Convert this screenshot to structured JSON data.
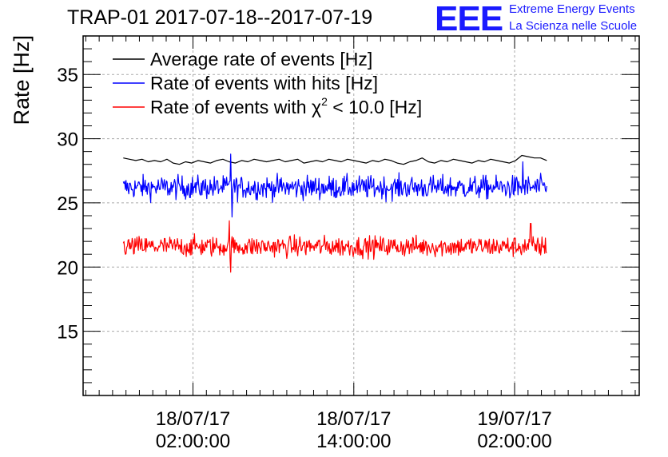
{
  "chart_data": {
    "type": "line",
    "title": "TRAP-01 2017-07-18--2017-07-19",
    "ylabel": "Rate [Hz]",
    "xlabel": "",
    "ylim": [
      10,
      38
    ],
    "xlim_hours": [
      -8.2,
      33.3
    ],
    "yticks": [
      15,
      20,
      25,
      30,
      35
    ],
    "xticks": [
      {
        "hour": 0,
        "date": "18/07/17",
        "time": "02:00:00"
      },
      {
        "hour": 12,
        "date": "18/07/17",
        "time": "14:00:00"
      },
      {
        "hour": 24,
        "date": "19/07/17",
        "time": "02:00:00"
      }
    ],
    "grid": true,
    "legend_position": "top-left",
    "series": [
      {
        "name": "Average rate of events [Hz]",
        "color": "#000000",
        "x_start_hours": -5.2,
        "x_end_hours": 26.4,
        "values": [
          28.5,
          28.4,
          28.3,
          28.4,
          28.2,
          28.3,
          28.2,
          28.4,
          28.1,
          28.0,
          28.2,
          28.1,
          28.3,
          28.2,
          28.1,
          28.3,
          28.4,
          28.2,
          28.1,
          28.3,
          28.2,
          28.4,
          28.3,
          28.2,
          28.3,
          28.4,
          28.2,
          28.3,
          28.4,
          28.1,
          28.2,
          28.3,
          28.2,
          28.4,
          28.3,
          28.2,
          28.4,
          28.3,
          28.2,
          28.1,
          28.3,
          28.2,
          28.4,
          28.3,
          28.1,
          28.0,
          28.2,
          28.3,
          28.5,
          28.2,
          28.1,
          28.3,
          28.2,
          28.4,
          28.3,
          28.2,
          28.1,
          28.3,
          28.2,
          28.4,
          28.3,
          28.2,
          28.1,
          28.3,
          28.7,
          28.6,
          28.5,
          28.5,
          28.3
        ]
      },
      {
        "name": "Rate of events with hits [Hz]",
        "color": "#0000ff",
        "x_start_hours": -5.2,
        "x_end_hours": 26.4,
        "mean": 26.2,
        "noise_amplitude": 0.9,
        "spikes": [
          {
            "hour": 2.8,
            "value": 28.8
          },
          {
            "hour": 2.9,
            "value": 23.9
          },
          {
            "hour": 24.6,
            "value": 28.2
          }
        ]
      },
      {
        "name": "Rate of events with χ² < 10.0 [Hz]",
        "color": "#ff0000",
        "x_start_hours": -5.2,
        "x_end_hours": 26.4,
        "mean": 21.6,
        "noise_amplitude": 0.8,
        "spikes": [
          {
            "hour": 2.7,
            "value": 23.6
          },
          {
            "hour": 2.8,
            "value": 19.6
          },
          {
            "hour": 25.2,
            "value": 23.4
          }
        ]
      }
    ]
  },
  "legend": {
    "avg_label": "Average rate of events [Hz]",
    "hits_label": "Rate of events with hits [Hz]",
    "chi2_label_prefix": "Rate of events with χ",
    "chi2_label_sup": "2",
    "chi2_label_suffix": " < 10.0 [Hz]"
  },
  "logo": {
    "mark": "EEE",
    "line1": "Extreme Energy Events",
    "line2": "La Scienza nelle Scuole"
  }
}
